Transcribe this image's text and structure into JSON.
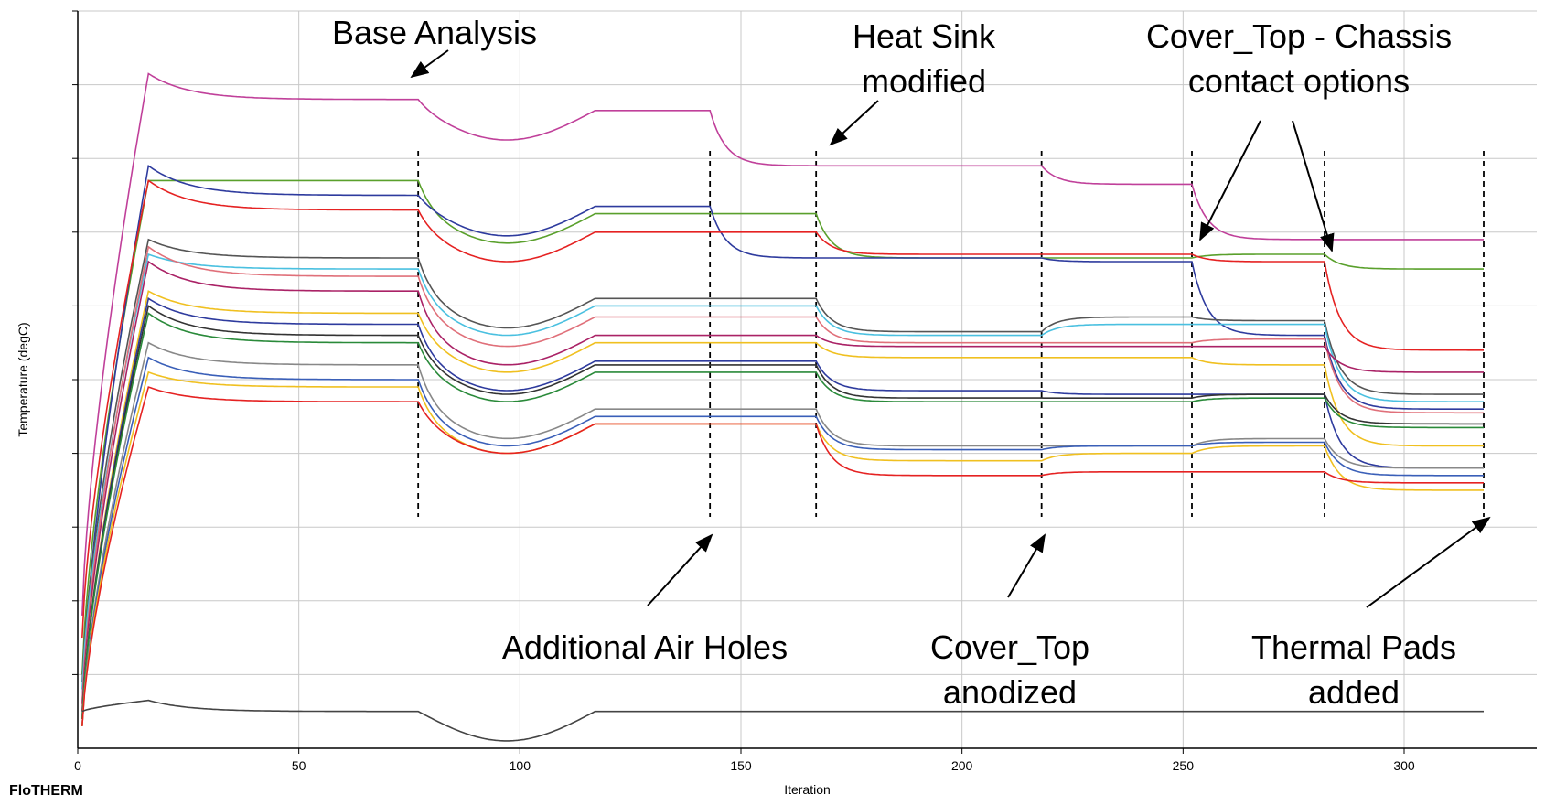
{
  "app": {
    "brand": "FloTHERM"
  },
  "chart_data": {
    "type": "line",
    "xlabel": "Iteration",
    "ylabel": "Temperature (degC)",
    "xlim": [
      0,
      330
    ],
    "ylim": [
      0,
      100
    ],
    "x_ticks": [
      0,
      50,
      100,
      150,
      200,
      250,
      300
    ],
    "y_gridlines": [
      10,
      20,
      30,
      40,
      50,
      60,
      70,
      80,
      90,
      100
    ],
    "grid": true,
    "legend": "none",
    "phase_markers": [
      77,
      143,
      167,
      218,
      252,
      282,
      318
    ],
    "annotations": [
      {
        "id": "base",
        "lines": [
          "Base Analysis"
        ],
        "points_to_iteration": 77
      },
      {
        "id": "heatsink",
        "lines": [
          "Heat Sink",
          "modified"
        ],
        "points_to_iteration": 167
      },
      {
        "id": "cover-chassis",
        "lines": [
          "Cover_Top - Chassis",
          "contact options"
        ],
        "points_to_iteration": [
          252,
          282
        ]
      },
      {
        "id": "airholes",
        "lines": [
          "Additional Air Holes"
        ],
        "points_to_iteration": 143
      },
      {
        "id": "anodized",
        "lines": [
          "Cover_Top",
          "anodized"
        ],
        "points_to_iteration": 218
      },
      {
        "id": "pads",
        "lines": [
          "Thermal Pads",
          "added"
        ],
        "points_to_iteration": 318
      }
    ],
    "series": [
      {
        "color": "#c0409a",
        "start": 18,
        "peak": 91.5,
        "levels": [
          88,
          86.5,
          79,
          79,
          76.5,
          69,
          69
        ]
      },
      {
        "color": "#5aa02c",
        "start": 10,
        "peak": 77,
        "levels": [
          77,
          72.5,
          72.5,
          66.5,
          66.5,
          67,
          65
        ]
      },
      {
        "color": "#2e3b9e",
        "start": 6,
        "peak": 79,
        "levels": [
          75,
          73.5,
          66.5,
          66.5,
          66,
          56,
          46
        ]
      },
      {
        "color": "#e52222",
        "start": 15,
        "peak": 77,
        "levels": [
          73,
          70,
          70,
          67,
          67,
          66,
          54
        ]
      },
      {
        "color": "#555555",
        "start": 9,
        "peak": 69,
        "levels": [
          66.5,
          61,
          61,
          56.5,
          58.5,
          58,
          48
        ]
      },
      {
        "color": "#4ac0e0",
        "start": 8,
        "peak": 67,
        "levels": [
          65,
          60,
          60,
          56,
          57.5,
          57.5,
          47
        ]
      },
      {
        "color": "#e0707a",
        "start": 6,
        "peak": 68,
        "levels": [
          64,
          58.5,
          58.5,
          55,
          55,
          55.5,
          45.5
        ]
      },
      {
        "color": "#aa2266",
        "start": 5,
        "peak": 66,
        "levels": [
          62,
          56,
          56,
          54.5,
          54.5,
          54.5,
          51
        ]
      },
      {
        "color": "#f0c020",
        "start": 4,
        "peak": 62,
        "levels": [
          59,
          55,
          55,
          53,
          53,
          52,
          41
        ]
      },
      {
        "color": "#2e3b9e",
        "start": 4,
        "peak": 61,
        "levels": [
          57.5,
          52.5,
          52.5,
          48.5,
          48,
          48,
          38
        ]
      },
      {
        "color": "#333333",
        "start": 4,
        "peak": 60,
        "levels": [
          56,
          52,
          52,
          47.5,
          47.5,
          48,
          44
        ]
      },
      {
        "color": "#2a8a3a",
        "start": 4,
        "peak": 59,
        "levels": [
          55,
          51,
          51,
          47,
          47,
          47.5,
          43.5
        ]
      },
      {
        "color": "#888888",
        "start": 3,
        "peak": 55,
        "levels": [
          52,
          46,
          46,
          41,
          41,
          42,
          38
        ]
      },
      {
        "color": "#3a5fb8",
        "start": 3,
        "peak": 53,
        "levels": [
          50,
          45,
          45,
          40.5,
          41,
          41.5,
          37
        ]
      },
      {
        "color": "#f0c020",
        "start": 3,
        "peak": 51,
        "levels": [
          49,
          44,
          44,
          39,
          40,
          41,
          35
        ]
      },
      {
        "color": "#e52222",
        "start": 3,
        "peak": 49,
        "levels": [
          47,
          44,
          44,
          37,
          37.5,
          37.5,
          36
        ]
      },
      {
        "color": "#444444",
        "start": 5,
        "peak": 6.5,
        "levels": [
          5,
          5,
          5,
          5,
          5,
          5,
          5
        ]
      }
    ]
  }
}
